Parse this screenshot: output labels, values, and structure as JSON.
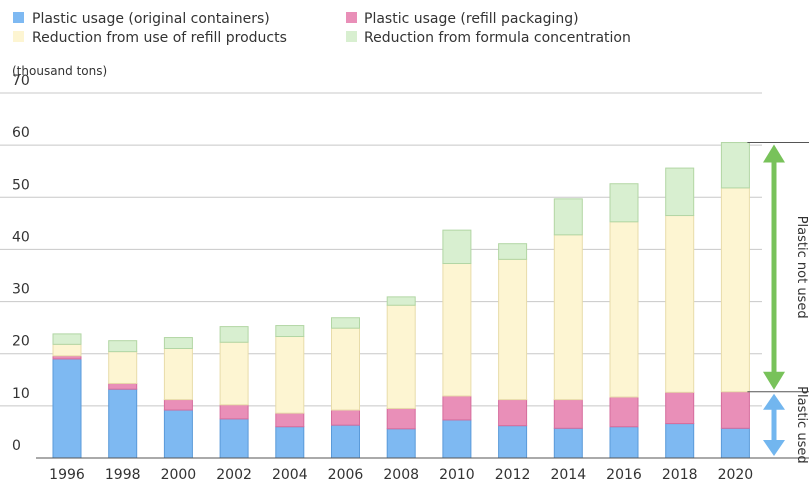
{
  "chart_data": {
    "type": "bar",
    "stacked": true,
    "unit_label": "(thousand tons)",
    "categories": [
      "1996",
      "1998",
      "2000",
      "2002",
      "2004",
      "2006",
      "2008",
      "2010",
      "2012",
      "2014",
      "2016",
      "2018",
      "2020"
    ],
    "ylim": [
      0,
      70
    ],
    "yticks": [
      0,
      10,
      20,
      30,
      40,
      50,
      60,
      70
    ],
    "grid": true,
    "legend_position": "top",
    "series": [
      {
        "name": "Plastic usage (original containers)",
        "color": "#7eb9f2",
        "edge": "#5a9ad9",
        "values": [
          19.0,
          13.2,
          9.2,
          7.5,
          6.0,
          6.3,
          5.6,
          7.3,
          6.2,
          5.7,
          6.0,
          6.6,
          5.7
        ]
      },
      {
        "name": "Plastic usage (refill packaging)",
        "color": "#e98fb8",
        "edge": "#d56c9c",
        "values": [
          0.6,
          1.1,
          2.0,
          2.7,
          2.6,
          2.9,
          3.9,
          4.6,
          5.0,
          5.5,
          5.7,
          6.0,
          7.0
        ]
      },
      {
        "name": "Reduction from use of refill products",
        "color": "#fdf5d2",
        "edge": "#e8dcaa",
        "values": [
          2.2,
          6.1,
          9.8,
          12.0,
          14.7,
          15.7,
          19.8,
          25.4,
          26.9,
          31.6,
          33.6,
          33.9,
          39.1
        ]
      },
      {
        "name": "Reduction from formula concentration",
        "color": "#d8efd0",
        "edge": "#b2d6a4",
        "values": [
          2.0,
          2.1,
          2.1,
          3.0,
          2.1,
          2.0,
          1.6,
          6.4,
          3.0,
          6.9,
          7.3,
          9.1,
          8.7
        ]
      }
    ],
    "annotations": [
      {
        "label": "Plastic not used",
        "color": "#78c25a"
      },
      {
        "label": "Plastic used",
        "color": "#72b6ef"
      }
    ]
  }
}
